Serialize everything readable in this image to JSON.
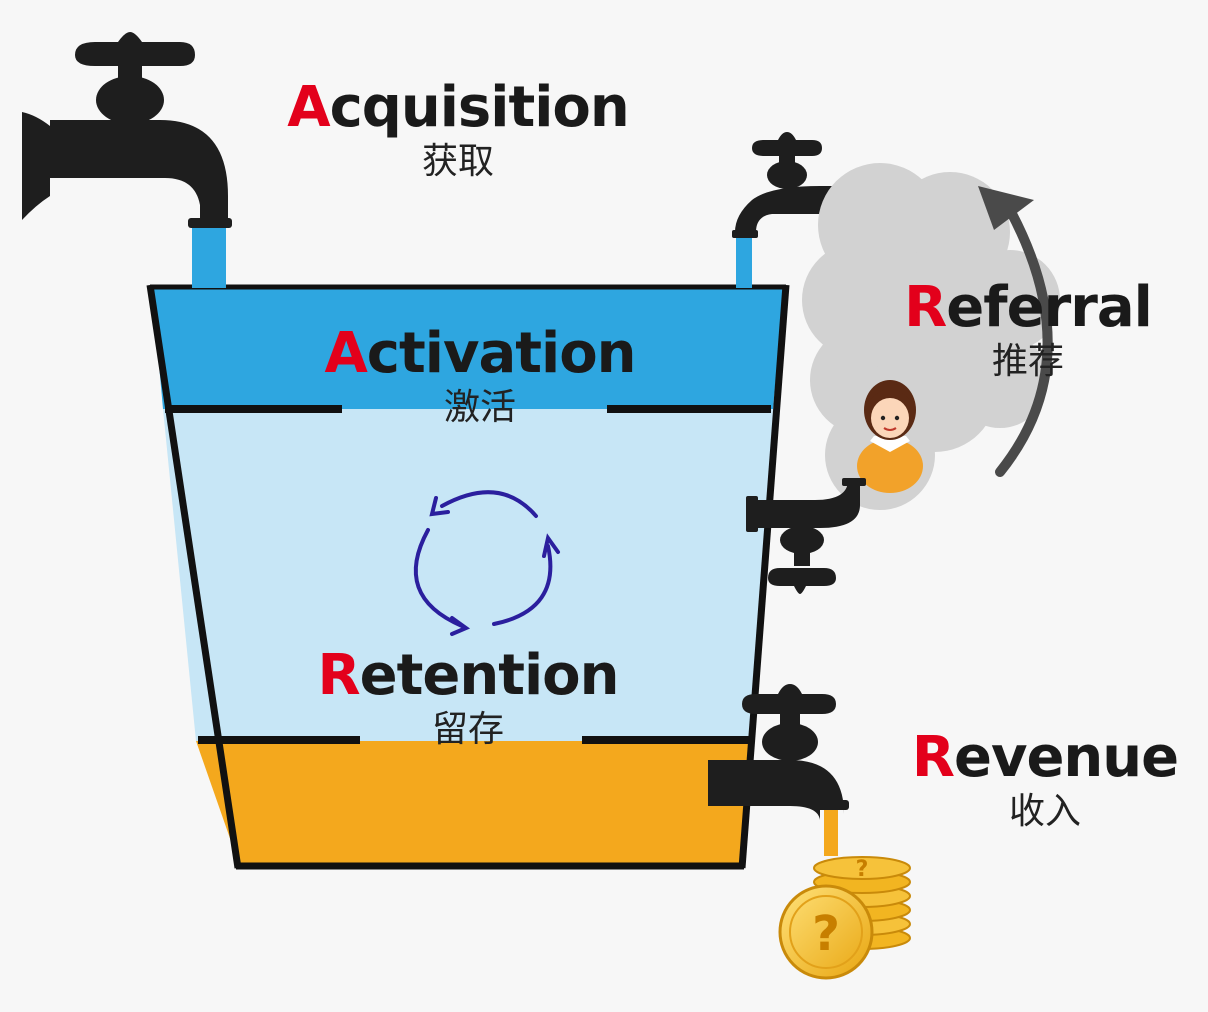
{
  "stages": {
    "acquisition": {
      "initial": "A",
      "rest": "cquisition",
      "cn": "获取"
    },
    "activation": {
      "initial": "A",
      "rest": "ctivation",
      "cn": "激活"
    },
    "retention": {
      "initial": "R",
      "rest": "etention",
      "cn": "留存"
    },
    "referral": {
      "initial": "R",
      "rest": "eferral",
      "cn": "推荐"
    },
    "revenue": {
      "initial": "R",
      "rest": "evenue",
      "cn": "收入"
    }
  },
  "coin_mark": "?",
  "colors": {
    "activation_water": "#2ea6e0",
    "retention_water": "#c7e6f6",
    "revenue_water": "#f4a81d",
    "outline": "#111111",
    "faucet": "#1e1e1e",
    "cloud": "#d2d2d2",
    "accent": "#e3001b"
  }
}
